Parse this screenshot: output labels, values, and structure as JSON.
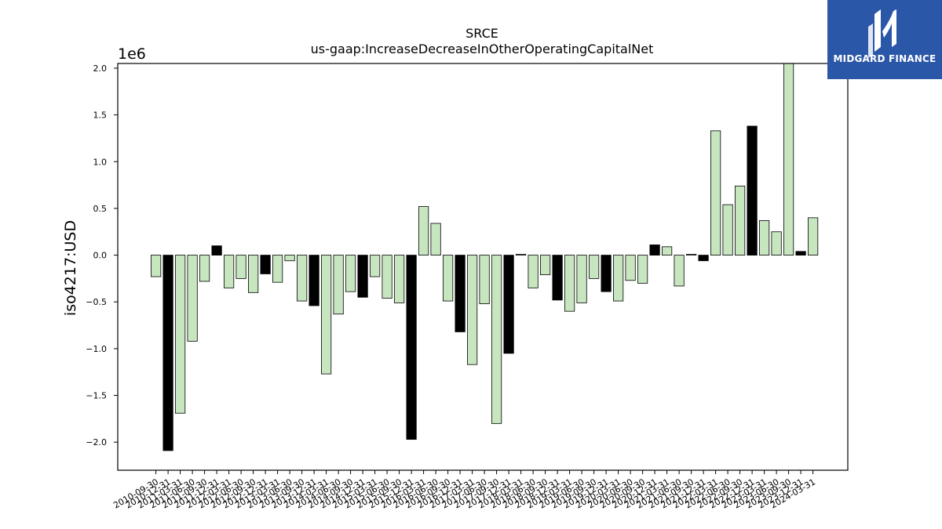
{
  "logo": {
    "text": "MIDGARD FINANCE",
    "bg_color": "#2b57a8"
  },
  "chart_data": {
    "type": "bar",
    "title": "SRCE",
    "subtitle": "us-gaap:IncreaseDecreaseInOtherOperatingCapitalNet",
    "ylabel": "iso4217:USD",
    "offset_text": "1e6",
    "ylim": [
      -2.3,
      2.05
    ],
    "yticks": [
      -2.0,
      -1.5,
      -1.0,
      -0.5,
      0.0,
      0.5,
      1.0,
      1.5,
      2.0
    ],
    "ytick_labels": [
      "−2.0",
      "−1.5",
      "−1.0",
      "−0.5",
      "0.0",
      "0.5",
      "1.0",
      "1.5",
      "2.0"
    ],
    "colors": {
      "quarter": "#c7e6c0",
      "year_end": "#000000",
      "edge": "#000000"
    },
    "categories": [
      "2010-09-30",
      "2010-12-31",
      "2011-03-31",
      "2011-06-30",
      "2011-09-30",
      "2011-12-31",
      "2012-03-31",
      "2012-06-30",
      "2012-09-30",
      "2012-12-31",
      "2013-03-31",
      "2013-06-30",
      "2013-09-30",
      "2013-12-31",
      "2014-03-31",
      "2014-06-30",
      "2014-09-30",
      "2014-12-31",
      "2015-03-31",
      "2015-06-30",
      "2015-09-30",
      "2015-12-31",
      "2016-03-31",
      "2016-06-30",
      "2016-09-30",
      "2016-12-31",
      "2017-03-31",
      "2017-06-30",
      "2017-09-30",
      "2017-12-31",
      "2018-03-31",
      "2018-06-30",
      "2018-09-30",
      "2018-12-31",
      "2019-03-31",
      "2019-06-30",
      "2019-09-30",
      "2019-12-31",
      "2020-03-31",
      "2020-06-30",
      "2020-09-30",
      "2020-12-31",
      "2021-03-31",
      "2021-06-30",
      "2021-09-30",
      "2021-12-31",
      "2022-03-31",
      "2022-06-30",
      "2022-09-30",
      "2022-12-31",
      "2023-03-31",
      "2023-06-30",
      "2023-09-30",
      "2023-12-31",
      "2024-03-31"
    ],
    "values": [
      -0.23,
      -2.09,
      -1.69,
      -0.92,
      -0.28,
      0.1,
      -0.35,
      -0.25,
      -0.4,
      -0.2,
      -0.29,
      -0.06,
      -0.49,
      -0.54,
      -1.27,
      -0.63,
      -0.39,
      -0.45,
      -0.23,
      -0.46,
      -0.51,
      -1.97,
      0.52,
      0.34,
      -0.49,
      -0.82,
      -1.17,
      -0.52,
      -1.8,
      -1.05,
      0.01,
      -0.35,
      -0.21,
      -0.48,
      -0.6,
      -0.51,
      -0.25,
      -0.39,
      -0.49,
      -0.27,
      -0.3,
      0.11,
      0.09,
      -0.33,
      0.01,
      -0.06,
      1.33,
      0.54,
      0.74,
      1.38,
      0.37,
      0.25,
      2.05,
      0.04,
      0.4
    ]
  }
}
